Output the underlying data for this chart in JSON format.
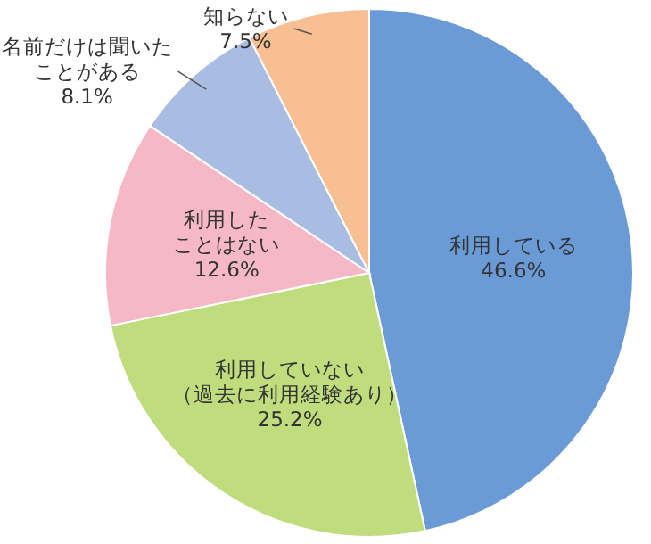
{
  "chart_data": {
    "type": "pie",
    "categories": [
      "利用している",
      "利用していない（過去に利用経験あり）",
      "利用したことはない",
      "名前だけは聞いたことがある",
      "知らない"
    ],
    "values": [
      46.6,
      25.2,
      12.6,
      8.1,
      7.5
    ],
    "value_labels": [
      "46.6%",
      "25.2%",
      "12.6%",
      "8.1%",
      "7.5%"
    ],
    "colors": [
      "#6b9bd6",
      "#bfdd7c",
      "#f6b8c6",
      "#a9bde2",
      "#f8bf92"
    ],
    "legend": false
  }
}
